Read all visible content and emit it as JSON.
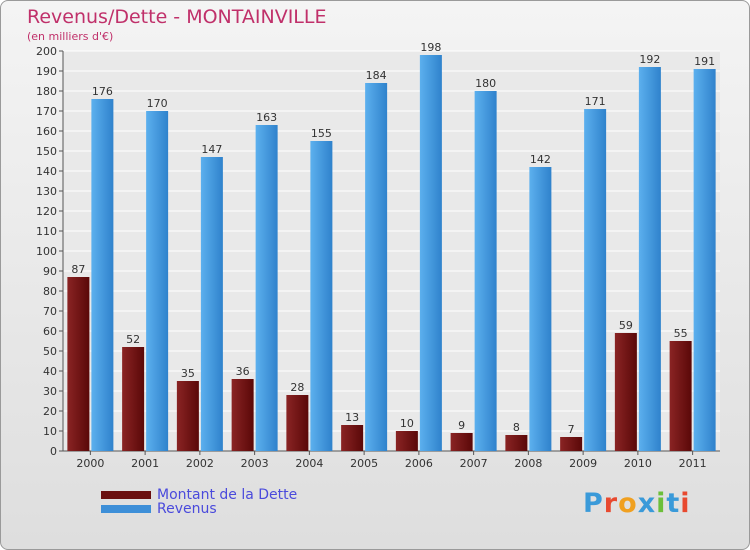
{
  "title": "Revenus/Dette - MONTAINVILLE",
  "subtitle": "(en milliers d'€)",
  "legend": [
    {
      "label": "Montant de la Dette",
      "color": "#6a0f0f"
    },
    {
      "label": "Revenus",
      "color": "#3d8fd8"
    }
  ],
  "logo": {
    "text": "Proxiti",
    "letters": [
      "P",
      "r",
      "o",
      "x",
      "i",
      "t",
      "i"
    ],
    "colors": [
      "#3a9ad9",
      "#e8492f",
      "#f0a020",
      "#3a9ad9",
      "#6cbf3a",
      "#3a9ad9",
      "#e8492f"
    ]
  },
  "chart_data": {
    "type": "bar",
    "categories": [
      "2000",
      "2001",
      "2002",
      "2003",
      "2004",
      "2005",
      "2006",
      "2007",
      "2008",
      "2009",
      "2010",
      "2011"
    ],
    "series": [
      {
        "name": "Montant de la Dette",
        "color": "#7a1717",
        "values": [
          87,
          52,
          35,
          36,
          28,
          13,
          10,
          9,
          8,
          7,
          59,
          55
        ]
      },
      {
        "name": "Revenus",
        "color": "#4aa3e6",
        "values": [
          176,
          170,
          147,
          163,
          155,
          184,
          198,
          180,
          142,
          171,
          192,
          191
        ]
      }
    ],
    "ylim": [
      0,
      200
    ],
    "yticks": [
      0,
      10,
      20,
      30,
      40,
      50,
      60,
      70,
      80,
      90,
      100,
      110,
      120,
      130,
      140,
      150,
      160,
      170,
      180,
      190,
      200
    ],
    "grid": true,
    "title": "Revenus/Dette - MONTAINVILLE",
    "ylabel": "(en milliers d'€)"
  }
}
